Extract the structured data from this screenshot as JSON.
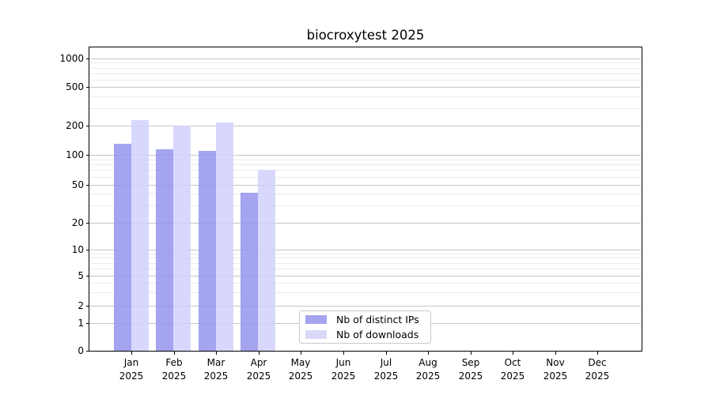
{
  "page": {
    "title": "biocroxytest 2025"
  },
  "colors": {
    "background": "#ffffff",
    "axis_frame": "#000000",
    "major_grid": "#c6c6c6",
    "minor_grid": "#ebebeb",
    "legend_border": "#c9c9c9",
    "distinct_ips": "#a4a4f0",
    "downloads": "#d8d8f8"
  },
  "chart_data": {
    "type": "bar",
    "title": "biocroxytest 2025",
    "categories": [
      "Jan",
      "Feb",
      "Mar",
      "Apr",
      "May",
      "Jun",
      "Jul",
      "Aug",
      "Sep",
      "Oct",
      "Nov",
      "Dec"
    ],
    "year_label": "2025",
    "series": [
      {
        "name": "Nb of distinct IPs",
        "color": "#a4a4f0",
        "bar_fill": "rgba(148,148,238,0.85)",
        "values": [
          130,
          115,
          110,
          41,
          0,
          0,
          0,
          0,
          0,
          0,
          0,
          0
        ]
      },
      {
        "name": "Nb of downloads",
        "color": "#d8d8f8",
        "bar_fill": "rgba(209,209,251,0.85)",
        "values": [
          227,
          199,
          216,
          70,
          0,
          0,
          0,
          0,
          0,
          0,
          0,
          0
        ]
      }
    ],
    "xlabel": "",
    "ylabel": "",
    "yscale": "symlog",
    "ylim": [
      0,
      1778
    ],
    "yticks": [
      0,
      1,
      2,
      5,
      10,
      20,
      50,
      100,
      200,
      500,
      1000
    ],
    "minor_gridlines": [
      3,
      4,
      6,
      7,
      8,
      9,
      30,
      40,
      60,
      70,
      80,
      90,
      300,
      400,
      600,
      700,
      800,
      900
    ],
    "grid": true,
    "legend_position": "bottom-center"
  }
}
